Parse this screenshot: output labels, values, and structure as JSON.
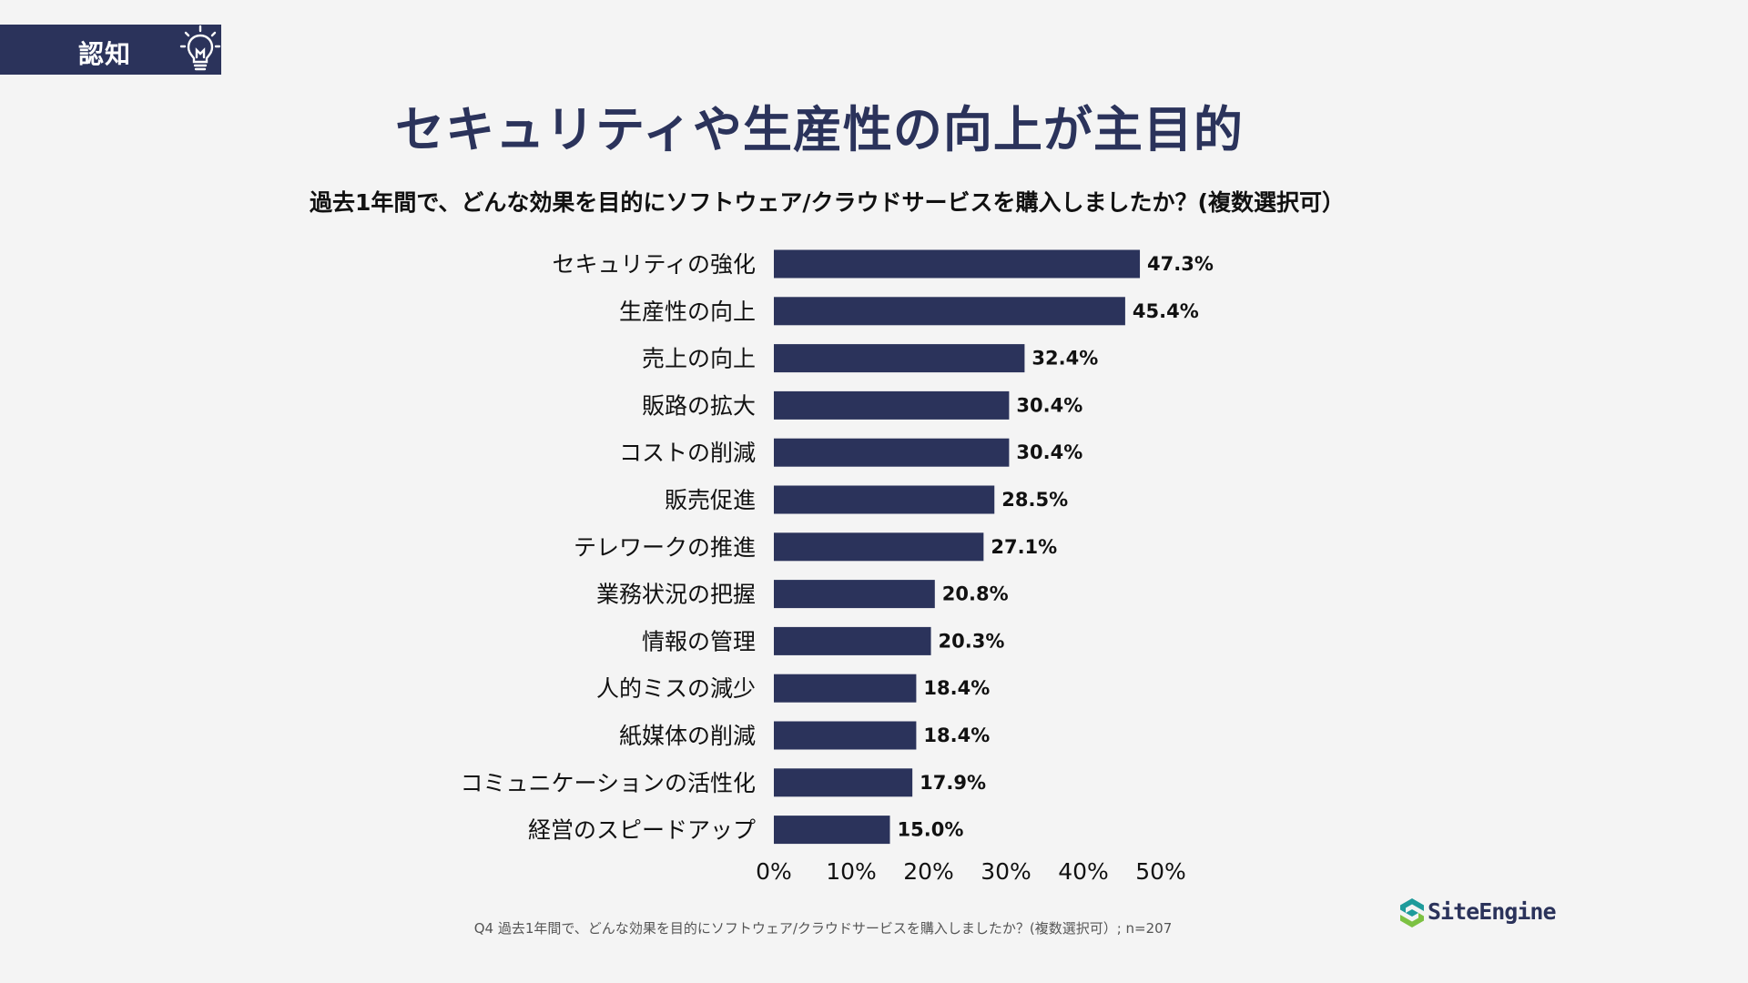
{
  "header": {
    "tag": "認知",
    "title": "セキュリティや生産性の向上が主目的",
    "question": "過去1年間で、どんな効果を目的にソフトウェア/クラウドサービスを購入しましたか？(複数選択可）"
  },
  "footer": {
    "note": "Q4 過去1年間で、どんな効果を目的にソフトウェア/クラウドサービスを購入しましたか？(複数選択可）; n=207",
    "logo": "SiteEngine"
  },
  "colors": {
    "bar": "#2b335b",
    "accent": "#2b335b",
    "background": "#f4f4f4",
    "logo_teal": "#1e9b9b",
    "logo_green": "#7cc142"
  },
  "icons": {
    "tag_icon": "lightbulb-icon",
    "logo_icon": "site-engine-logo-icon"
  },
  "chart_data": {
    "type": "bar",
    "orientation": "horizontal",
    "title": "過去1年間で、どんな効果を目的にソフトウェア/クラウドサービスを購入しましたか？(複数選択可）",
    "categories": [
      "セキュリティの強化",
      "生産性の向上",
      "売上の向上",
      "販路の拡大",
      "コストの削減",
      "販売促進",
      "テレワークの推進",
      "業務状況の把握",
      "情報の管理",
      "人的ミスの減少",
      "紙媒体の削減",
      "コミュニケーションの活性化",
      "経営のスピードアップ"
    ],
    "values": [
      47.3,
      45.4,
      32.4,
      30.4,
      30.4,
      28.5,
      27.1,
      20.8,
      20.3,
      18.4,
      18.4,
      17.9,
      15.0
    ],
    "value_labels": [
      "47.3%",
      "45.4%",
      "32.4%",
      "30.4%",
      "30.4%",
      "28.5%",
      "27.1%",
      "20.8%",
      "20.3%",
      "18.4%",
      "18.4%",
      "17.9%",
      "15.0%"
    ],
    "x_ticks": [
      0,
      10,
      20,
      30,
      40,
      50
    ],
    "x_tick_labels": [
      "0%",
      "10%",
      "20%",
      "30%",
      "40%",
      "50%"
    ],
    "xlim": [
      0,
      50
    ],
    "xlabel": "",
    "ylabel": "",
    "grid": false,
    "legend": "none",
    "n": 207
  }
}
